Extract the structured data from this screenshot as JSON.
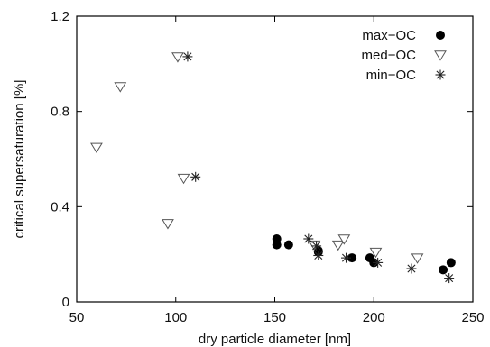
{
  "chart_data": {
    "type": "scatter",
    "xlabel": "dry particle diameter [nm]",
    "ylabel": "critical supersaturation [%]",
    "xlim": [
      50,
      250
    ],
    "ylim": [
      0,
      1.2
    ],
    "xticks": [
      50,
      100,
      150,
      200,
      250
    ],
    "yticks": [
      0,
      0.4,
      0.8,
      1.2
    ],
    "x_tick_labels": [
      "50",
      "100",
      "150",
      "200",
      "250"
    ],
    "y_tick_labels": [
      "0",
      "0.4",
      "0.8",
      "1.2"
    ],
    "grid": false,
    "legend_position": "top-right",
    "series": [
      {
        "name": "max−OC",
        "marker": "filled-circle",
        "points": [
          [
            151,
            0.265
          ],
          [
            151,
            0.24
          ],
          [
            157,
            0.24
          ],
          [
            172,
            0.215
          ],
          [
            172,
            0.21
          ],
          [
            189,
            0.185
          ],
          [
            198,
            0.185
          ],
          [
            200,
            0.165
          ],
          [
            235,
            0.135
          ],
          [
            239,
            0.165
          ]
        ]
      },
      {
        "name": "med−OC",
        "marker": "open-triangle-down",
        "points": [
          [
            60,
            0.65
          ],
          [
            72,
            0.905
          ],
          [
            96,
            0.33
          ],
          [
            101,
            1.03
          ],
          [
            104,
            0.52
          ],
          [
            170,
            0.24
          ],
          [
            182,
            0.24
          ],
          [
            185,
            0.265
          ],
          [
            201,
            0.21
          ],
          [
            222,
            0.185
          ]
        ]
      },
      {
        "name": "min−OC",
        "marker": "asterisk",
        "points": [
          [
            106,
            1.03
          ],
          [
            110,
            0.525
          ],
          [
            167,
            0.265
          ],
          [
            171,
            0.235
          ],
          [
            172,
            0.195
          ],
          [
            186,
            0.185
          ],
          [
            202,
            0.165
          ],
          [
            219,
            0.14
          ],
          [
            238,
            0.1
          ]
        ]
      }
    ]
  }
}
